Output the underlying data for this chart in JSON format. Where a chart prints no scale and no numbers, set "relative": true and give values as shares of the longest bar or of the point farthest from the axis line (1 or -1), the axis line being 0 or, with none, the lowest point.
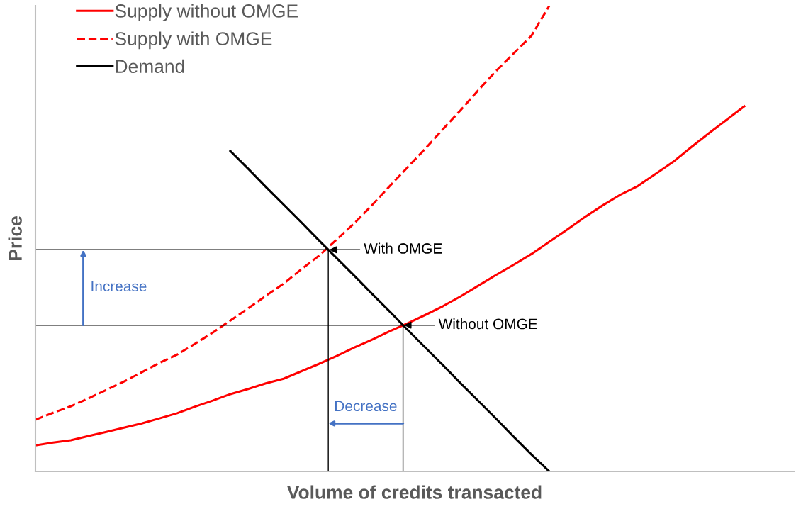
{
  "chart_data": {
    "type": "line",
    "relative": true,
    "xlabel": "Volume of credits transacted",
    "ylabel": "Price",
    "legend": "top left",
    "categories": [
      null,
      null,
      null,
      null,
      null,
      null,
      null,
      null,
      null,
      null,
      null,
      null,
      null,
      null,
      null,
      null,
      null,
      null,
      null,
      null,
      null,
      null,
      null,
      null,
      null,
      null,
      null,
      null,
      null,
      null,
      null,
      null,
      null,
      null,
      null,
      null,
      null,
      null,
      null,
      null,
      null
    ],
    "series": [
      {
        "name": "Supply without OMGE",
        "color": "#ff0000",
        "line_style": "solid",
        "values": [
          0.056,
          0.062,
          0.067,
          0.076,
          0.085,
          0.094,
          0.103,
          0.114,
          0.125,
          0.139,
          0.152,
          0.166,
          0.177,
          0.189,
          0.199,
          0.215,
          0.231,
          0.248,
          0.266,
          0.283,
          0.301,
          0.318,
          0.336,
          0.355,
          0.376,
          0.399,
          0.422,
          0.444,
          0.467,
          0.493,
          0.519,
          0.546,
          0.571,
          0.594,
          0.613,
          0.639,
          0.665,
          0.696,
          0.726,
          0.755,
          0.784
        ]
      },
      {
        "name": "Supply with OMGE",
        "color": "#ff0000",
        "line_style": "dashed",
        "values": [
          0.111,
          0.126,
          0.14,
          0.157,
          0.175,
          0.193,
          0.213,
          0.233,
          0.251,
          0.274,
          0.298,
          0.324,
          0.35,
          0.377,
          0.403,
          0.434,
          0.463,
          0.498,
          0.533,
          0.572,
          0.613,
          0.653,
          0.693,
          0.735,
          0.776,
          0.819,
          0.86,
          0.898,
          0.936,
          1.0,
          null,
          null,
          null,
          null,
          null,
          null,
          null,
          null,
          null,
          null,
          null
        ]
      },
      {
        "name": "Demand",
        "color": "#000000",
        "line_style": "solid",
        "values": [
          null,
          null,
          null,
          null,
          null,
          null,
          null,
          null,
          null,
          null,
          null,
          0.688,
          0.65,
          0.611,
          0.573,
          0.535,
          0.496,
          0.458,
          0.42,
          0.381,
          0.343,
          0.304,
          0.266,
          0.228,
          0.189,
          0.151,
          0.113,
          0.074,
          0.036,
          0.0,
          null,
          null,
          null,
          null,
          null,
          null,
          null,
          null,
          null,
          null,
          null
        ]
      }
    ],
    "ref_lines": [
      {
        "axis": "y",
        "value": 0.476,
        "color": "#000000"
      },
      {
        "axis": "y",
        "value": 0.314,
        "color": "#000000"
      }
    ],
    "annotations": [
      "With OMGE",
      "Without OMGE",
      "Increase",
      "Decrease"
    ]
  }
}
